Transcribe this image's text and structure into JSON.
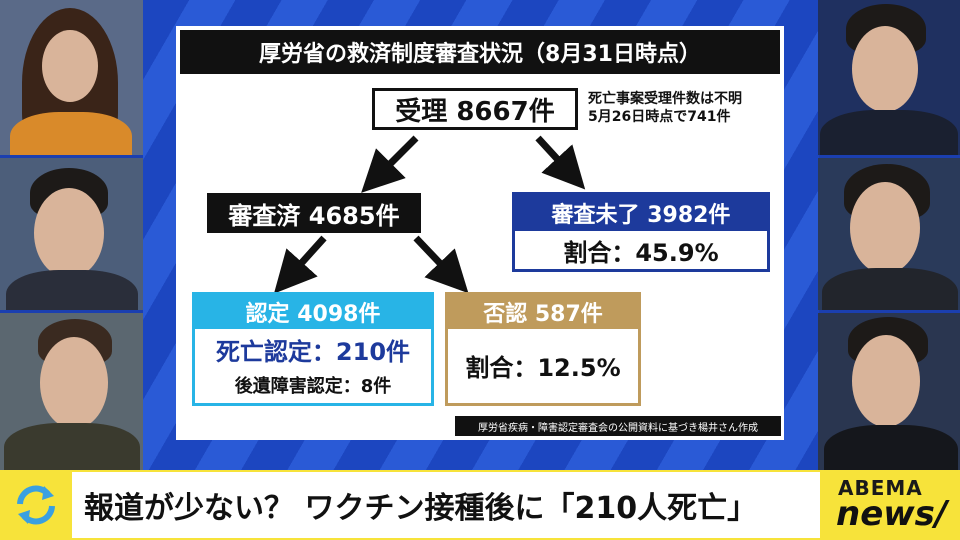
{
  "panel": {
    "title": "厚労省の救済制度審査状況（8月31日時点）",
    "received": "受理 8667件",
    "received_note": [
      "死亡事案受理件数は不明",
      "5月26日時点で741件"
    ],
    "reviewed": "審査済 4685件",
    "pending": {
      "header": "審査未了 3982件",
      "ratio": "割合：45.9%"
    },
    "approved": {
      "header": "認定 4098件",
      "death": "死亡認定：210件",
      "disability": "後遺障害認定：8件"
    },
    "denied": {
      "header": "否認 587件",
      "ratio": "割合：12.5%"
    },
    "source": "厚労省疾病・障害認定審査会の公開資料に基づき楊井さん作成"
  },
  "ticker": {
    "headline": "報道が少ない？ ワクチン接種後に「210人死亡」"
  },
  "logo": {
    "brand": "ABEMA",
    "channel": "news/"
  }
}
